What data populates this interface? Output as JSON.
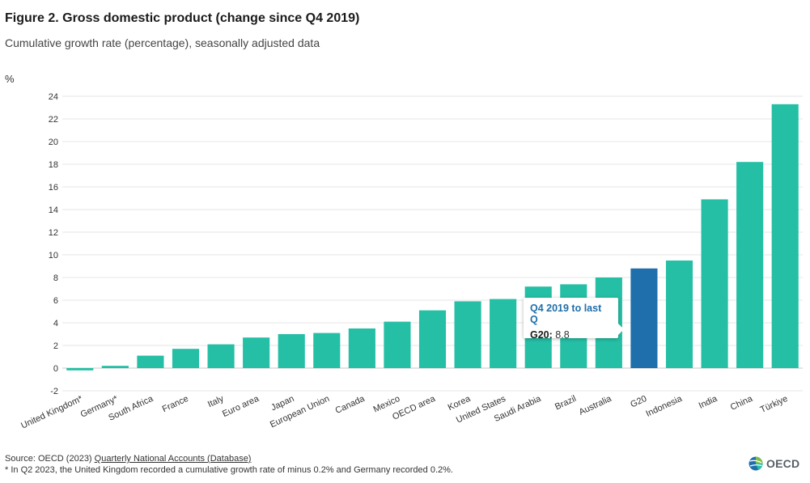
{
  "header": {
    "title": "Figure 2. Gross domestic product (change since Q4 2019)",
    "subtitle": "Cumulative growth rate (percentage), seasonally adjusted data",
    "unit": "%"
  },
  "chart_data": {
    "type": "bar",
    "categories": [
      "United Kingdom*",
      "Germany*",
      "South Africa",
      "France",
      "Italy",
      "Euro area",
      "Japan",
      "European Union",
      "Canada",
      "Mexico",
      "OECD area",
      "Korea",
      "United States",
      "Saudi Arabia",
      "Brazil",
      "Australia",
      "G20",
      "Indonesia",
      "India",
      "China",
      "Türkiye"
    ],
    "values": [
      -0.2,
      0.2,
      1.1,
      1.7,
      2.1,
      2.7,
      3.0,
      3.1,
      3.5,
      4.1,
      5.1,
      5.9,
      6.1,
      7.2,
      7.4,
      8.0,
      8.8,
      9.5,
      14.9,
      18.2,
      23.3
    ],
    "highlighted": "G20",
    "ylim": [
      -2,
      24
    ],
    "yticks": [
      -2,
      0,
      2,
      4,
      6,
      8,
      10,
      12,
      14,
      16,
      18,
      20,
      22,
      24
    ],
    "grid": true,
    "colors": {
      "bar": "#24bfa5",
      "highlight": "#1f6fad"
    }
  },
  "tooltip": {
    "title": "Q4 2019 to last Q",
    "label": "G20:",
    "value": "8.8"
  },
  "footer": {
    "source_prefix": "Source: OECD (2023) ",
    "source_link": "Quarterly National Accounts (Database)",
    "note": "* In Q2 2023, the United Kingdom recorded a cumulative growth rate of minus 0.2% and Germany recorded 0.2%.",
    "logo_text": "OECD"
  }
}
